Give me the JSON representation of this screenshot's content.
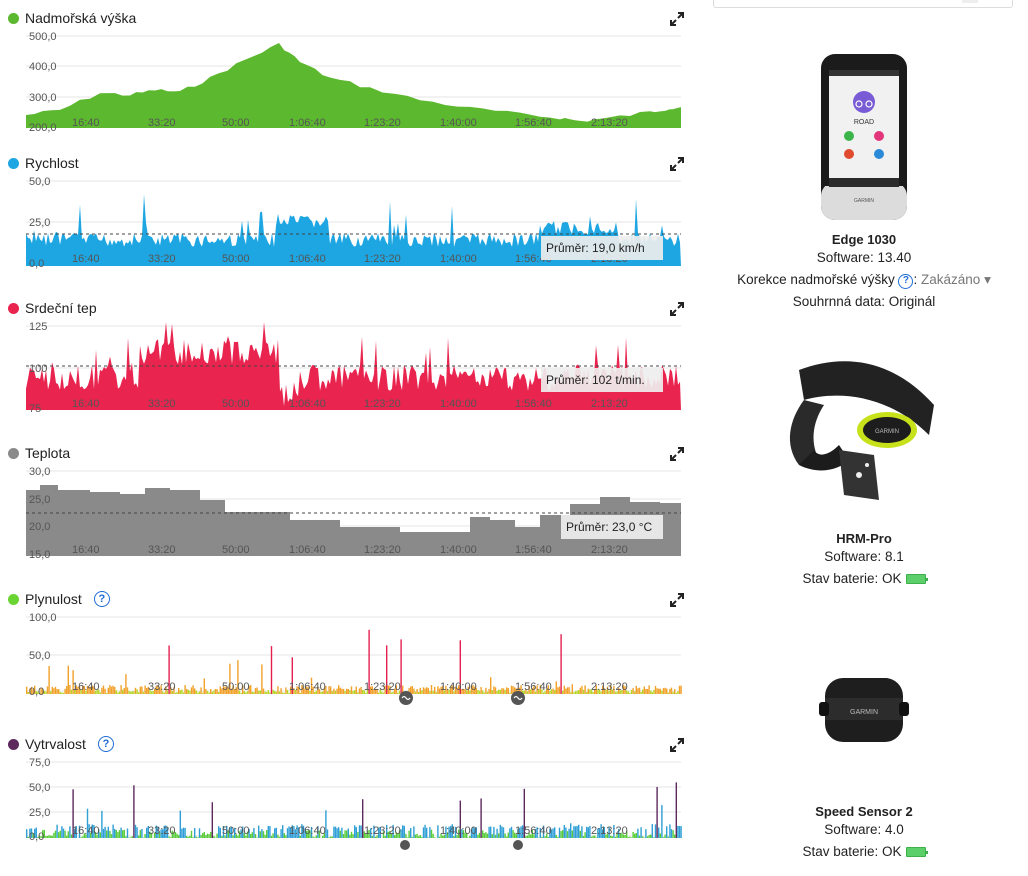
{
  "panels": [
    {
      "title": "Nadmořská výška",
      "color": "#5cb82e",
      "y_labels": [
        "500,0",
        "400,0",
        "300,0",
        "200,0"
      ],
      "x_labels": [
        "16:40",
        "33:20",
        "50:00",
        "1:06:40",
        "1:23:20",
        "1:40:00",
        "1:56:40",
        "2:13:20"
      ],
      "avg_label": null,
      "help": false
    },
    {
      "title": "Rychlost",
      "color": "#1ea6e2",
      "y_labels": [
        "50,0",
        "25,0",
        "0,0"
      ],
      "x_labels": [
        "16:40",
        "33:20",
        "50:00",
        "1:06:40",
        "1:23:20",
        "1:40:00",
        "1:56:40",
        "2:13:20"
      ],
      "avg_label": "Průměr: 19,0 km/h",
      "help": false
    },
    {
      "title": "Srdeční tep",
      "color": "#e8244f",
      "y_labels": [
        "125",
        "100",
        "75"
      ],
      "x_labels": [
        "16:40",
        "33:20",
        "50:00",
        "1:06:40",
        "1:23:20",
        "1:40:00",
        "1:56:40",
        "2:13:20"
      ],
      "avg_label": "Průměr: 102 t/min.",
      "help": false
    },
    {
      "title": "Teplota",
      "color": "#8a8a8a",
      "y_labels": [
        "30,0",
        "25,0",
        "20,0",
        "15,0"
      ],
      "x_labels": [
        "16:40",
        "33:20",
        "50:00",
        "1:06:40",
        "1:23:20",
        "1:40:00",
        "1:56:40",
        "2:13:20"
      ],
      "avg_label": "Průměr: 23,0 °C",
      "help": false
    },
    {
      "title": "Plynulost",
      "color": "#6ad432",
      "y_labels": [
        "100,0",
        "50,0",
        "0,0"
      ],
      "x_labels": [
        "16:40",
        "33:20",
        "50:00",
        "1:06:40",
        "1:23:20",
        "1:40:00",
        "1:56:40",
        "2:13:20"
      ],
      "avg_label": null,
      "help": true
    },
    {
      "title": "Vytrvalost",
      "color": "#5e2a5e",
      "y_labels": [
        "75,0",
        "50,0",
        "25,0",
        "0,0"
      ],
      "x_labels": [
        "16:40",
        "33:20",
        "50:00",
        "1:06:40",
        "1:23:20",
        "1:40:00",
        "1:56:40",
        "2:13:20"
      ],
      "avg_label": null,
      "help": true
    }
  ],
  "devices": [
    {
      "name": "Edge 1030",
      "lines": [
        "Software: 13.40"
      ],
      "correction_label": "Korekce nadmořské výšky",
      "correction_value": "Zakázáno",
      "summary": "Souhrnná data: Originál",
      "screen_text": "ROAD",
      "brand": "GARMIN"
    },
    {
      "name": "HRM-Pro",
      "software": "Software: 8.1",
      "battery": "Stav baterie: OK",
      "brand": "GARMIN"
    },
    {
      "name": "Speed Sensor 2",
      "software": "Software: 4.0",
      "battery": "Stav baterie: OK",
      "brand": "GARMIN"
    }
  ],
  "colors": {
    "grid": "#e6e6e6",
    "axis_text": "#555555",
    "help_blue": "#1e6bd6",
    "battery_green": "#5ccf6a"
  }
}
